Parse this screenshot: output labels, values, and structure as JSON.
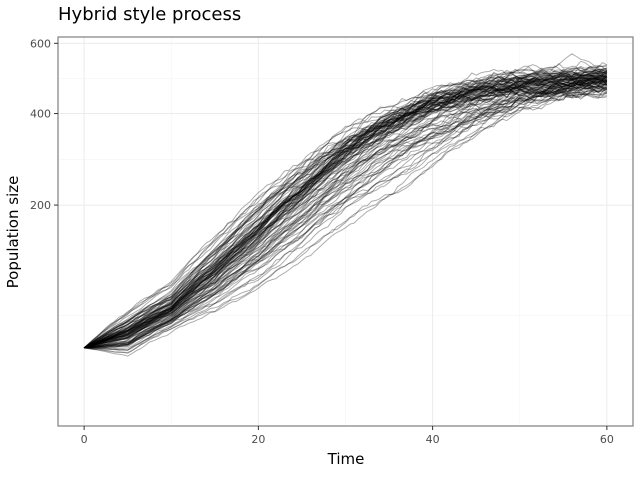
{
  "chart_data": {
    "type": "line",
    "title": "Hybrid style process",
    "xlabel": "Time",
    "ylabel": "Population size",
    "x_ticks": [
      0,
      20,
      40,
      60
    ],
    "y_ticks": [
      200,
      400,
      600
    ],
    "y_scale": "sqrt",
    "xlim": [
      -3,
      63
    ],
    "ylim": [
      0,
      620
    ],
    "grid": true,
    "legend": "none",
    "line_color": "#000000",
    "series_count": 100,
    "x_step": 0.5,
    "envelope": {
      "x": [
        0,
        5,
        10,
        15,
        20,
        25,
        30,
        35,
        40,
        45,
        50,
        55,
        60
      ],
      "y_low": [
        25,
        14,
        30,
        35,
        45,
        65,
        100,
        145,
        210,
        290,
        380,
        430,
        450
      ],
      "y_median": [
        25,
        35,
        55,
        95,
        150,
        220,
        300,
        370,
        420,
        455,
        475,
        485,
        490
      ],
      "y_high": [
        25,
        60,
        95,
        170,
        250,
        320,
        390,
        440,
        480,
        510,
        530,
        545,
        550
      ]
    }
  }
}
